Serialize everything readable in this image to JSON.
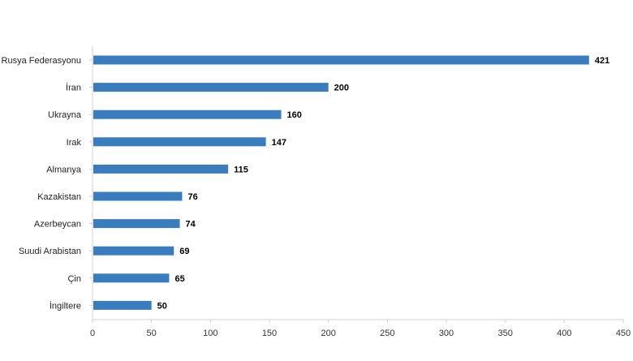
{
  "chart_data": {
    "type": "bar",
    "orientation": "horizontal",
    "categories": [
      "Rusya Federasyonu",
      "İran",
      "Ukrayna",
      "Irak",
      "Almanya",
      "Kazakistan",
      "Azerbeycan",
      "Suudi Arabistan",
      "Çin",
      "İngiltere"
    ],
    "values": [
      421,
      200,
      160,
      147,
      115,
      76,
      74,
      69,
      65,
      50
    ],
    "xlim": [
      0,
      450
    ],
    "xticks": [
      0,
      50,
      100,
      150,
      200,
      250,
      300,
      350,
      400,
      450
    ],
    "title": "",
    "xlabel": "",
    "ylabel": "",
    "grid": false,
    "legend": "none",
    "bar_color": "#3a7dbf",
    "data_labels": true
  }
}
